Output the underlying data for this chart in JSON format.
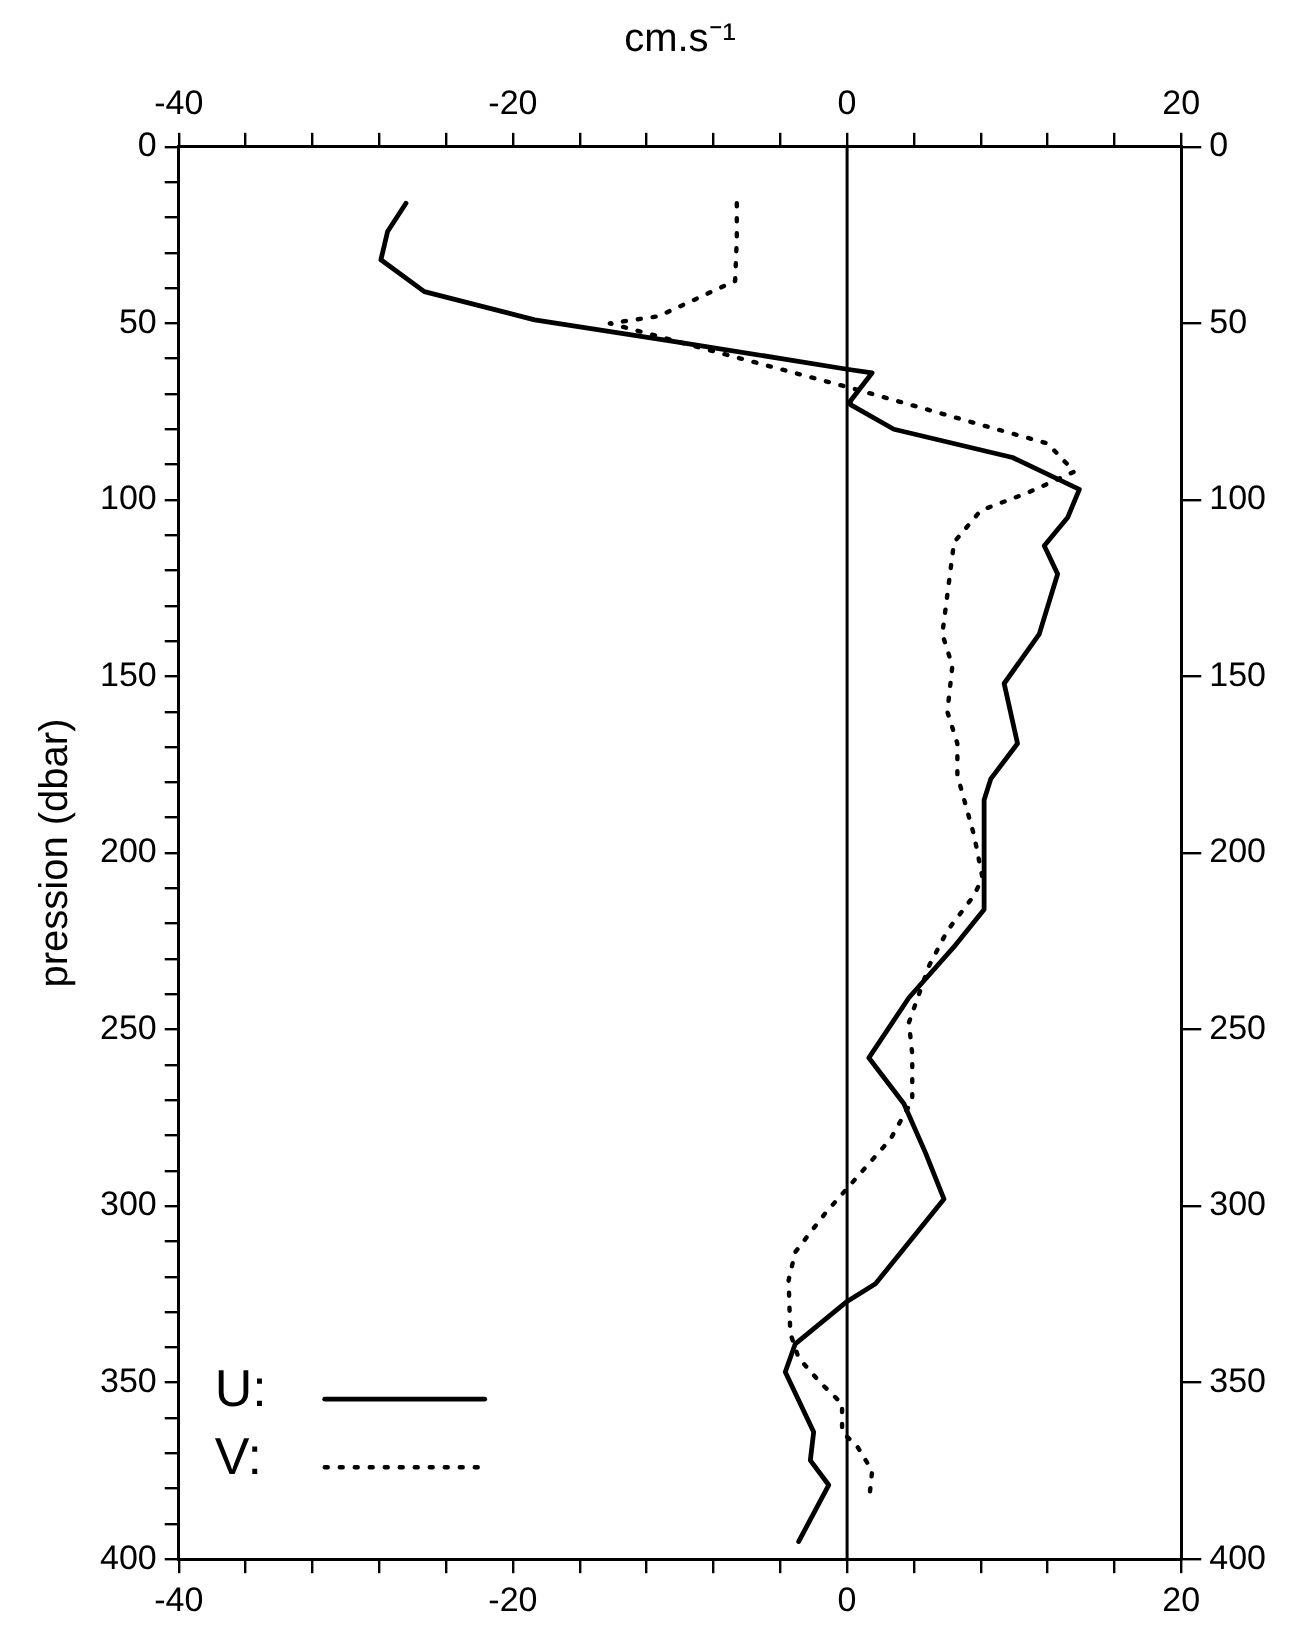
{
  "chart_data": {
    "type": "line",
    "x2label": "cm.s⁻¹",
    "ylabel": "pression (dbar)",
    "xlim": [
      -40,
      20
    ],
    "xticks": [
      -40,
      {
        "value": -36,
        "label": null
      },
      {
        "value": -32,
        "label": null
      },
      {
        "value": -28,
        "label": null
      },
      {
        "value": -24,
        "label": null
      },
      -20,
      {
        "value": -16,
        "label": null
      },
      {
        "value": -12,
        "label": null
      },
      {
        "value": -8,
        "label": null
      },
      {
        "value": -4,
        "label": null
      },
      0,
      {
        "value": 4,
        "label": null
      },
      {
        "value": 8,
        "label": null
      },
      {
        "value": 12,
        "label": null
      },
      {
        "value": 16,
        "label": null
      },
      20
    ],
    "x2lim": [
      -40,
      20
    ],
    "x2ticks": [
      -40,
      {
        "value": -36,
        "label": null
      },
      {
        "value": -32,
        "label": null
      },
      {
        "value": -28,
        "label": null
      },
      {
        "value": -24,
        "label": null
      },
      -20,
      {
        "value": -16,
        "label": null
      },
      {
        "value": -12,
        "label": null
      },
      {
        "value": -8,
        "label": null
      },
      {
        "value": -4,
        "label": null
      },
      0,
      {
        "value": 4,
        "label": null
      },
      {
        "value": 8,
        "label": null
      },
      {
        "value": 12,
        "label": null
      },
      {
        "value": 16,
        "label": null
      },
      20
    ],
    "ylim": [
      400,
      0
    ],
    "yticks": [
      0,
      {
        "value": 10,
        "label": null
      },
      {
        "value": 20,
        "label": null
      },
      {
        "value": 30,
        "label": null
      },
      {
        "value": 40,
        "label": null
      },
      50,
      {
        "value": 60,
        "label": null
      },
      {
        "value": 70,
        "label": null
      },
      {
        "value": 80,
        "label": null
      },
      {
        "value": 90,
        "label": null
      },
      100,
      {
        "value": 110,
        "label": null
      },
      {
        "value": 120,
        "label": null
      },
      {
        "value": 130,
        "label": null
      },
      {
        "value": 140,
        "label": null
      },
      150,
      {
        "value": 160,
        "label": null
      },
      {
        "value": 170,
        "label": null
      },
      {
        "value": 180,
        "label": null
      },
      {
        "value": 190,
        "label": null
      },
      200,
      {
        "value": 210,
        "label": null
      },
      {
        "value": 220,
        "label": null
      },
      {
        "value": 230,
        "label": null
      },
      {
        "value": 240,
        "label": null
      },
      250,
      {
        "value": 260,
        "label": null
      },
      {
        "value": 270,
        "label": null
      },
      {
        "value": 280,
        "label": null
      },
      {
        "value": 290,
        "label": null
      },
      300,
      {
        "value": 310,
        "label": null
      },
      {
        "value": 320,
        "label": null
      },
      {
        "value": 330,
        "label": null
      },
      {
        "value": 340,
        "label": null
      },
      350,
      {
        "value": 360,
        "label": null
      },
      {
        "value": 370,
        "label": null
      },
      {
        "value": 380,
        "label": null
      },
      {
        "value": 390,
        "label": null
      },
      400
    ],
    "y2lim": [
      400,
      0
    ],
    "y2ticks": [
      0,
      50,
      100,
      150,
      200,
      250,
      300,
      350,
      400
    ],
    "grid": false,
    "legend": "bottom left",
    "marker": "none",
    "ref_lines": [
      {
        "axis": "x",
        "value": 0,
        "color": "#000000"
      }
    ],
    "series": [
      {
        "name": "U:",
        "color": "#000000",
        "line_style": "solid",
        "x": [
          -26.4,
          -27.5,
          -27.9,
          -25.3,
          -18.7,
          -10.5,
          0,
          1.5,
          0.2,
          0.2,
          2.8,
          9.9,
          13.9,
          13.2,
          11.8,
          12.6,
          11.5,
          9.4,
          10.2,
          8.6,
          8.2,
          8.2,
          6.5,
          3.7,
          1.3,
          3.4,
          4.7,
          5.8,
          1.7,
          0,
          -3.1,
          -3.7,
          -2,
          -2.2,
          -1.1,
          -2.9
        ],
        "values": [
          16,
          24,
          32,
          41,
          49,
          55,
          63,
          64,
          72,
          73,
          80,
          88,
          97,
          105,
          113,
          121,
          138,
          152,
          169,
          179,
          185,
          216,
          226,
          241,
          258,
          271,
          285,
          298,
          322,
          327,
          339,
          347,
          364,
          372,
          379,
          395
        ]
      },
      {
        "name": "V:",
        "color": "#000000",
        "line_style": "dotted",
        "x": [
          -6.6,
          -6.6,
          -6.7,
          -11.3,
          -14.2,
          -8.7,
          0,
          6,
          8.2,
          12,
          13.6,
          10.8,
          8,
          6.4,
          5.7,
          6.3,
          6,
          6.6,
          6.6,
          7.6,
          8.1,
          7.6,
          6,
          4.9,
          3.7,
          3.9,
          3.9,
          2.6,
          0,
          -1.3,
          -3.1,
          -3.5,
          -3.4,
          -2.9,
          -1.6,
          -0.3,
          -0.3,
          0.6,
          1.5,
          1.3
        ],
        "values": [
          16,
          26,
          38,
          48,
          50,
          57,
          68,
          76,
          79,
          84,
          92,
          98,
          103,
          112,
          138,
          147,
          160,
          169,
          178,
          195,
          207,
          212,
          222,
          232,
          248,
          257,
          270,
          281,
          295,
          302,
          313,
          321,
          336,
          343,
          350,
          356,
          364,
          368,
          375,
          384
        ]
      }
    ]
  }
}
